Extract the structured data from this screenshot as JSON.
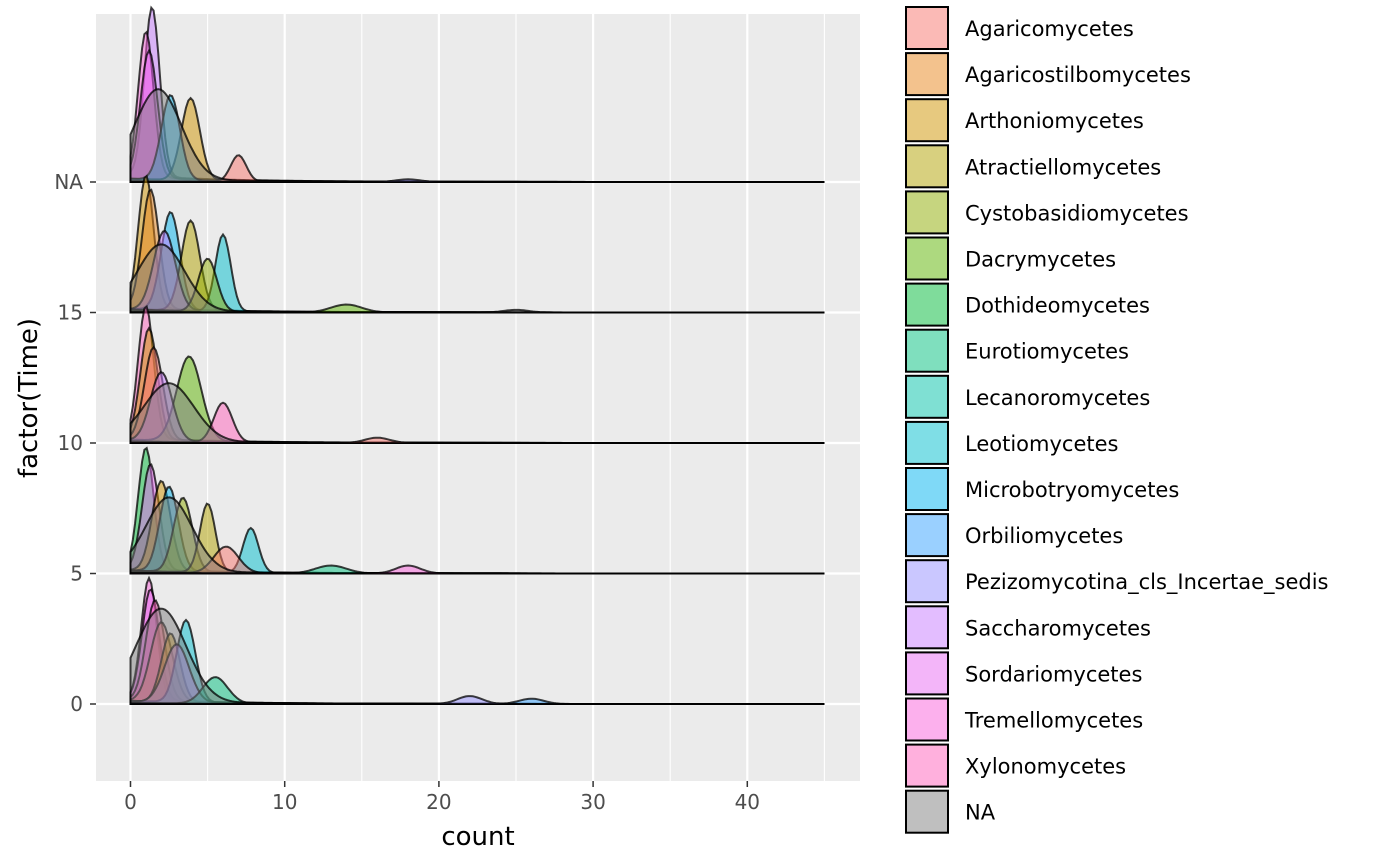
{
  "chart_data": {
    "type": "ridgeline",
    "title": "",
    "xlabel": "count",
    "ylabel": "factor(Time)",
    "xlim": [
      -2.25,
      47.25
    ],
    "x_ticks": [
      0,
      10,
      20,
      30,
      40
    ],
    "y_ticks": [
      "0",
      "5",
      "10",
      "15",
      "NA"
    ],
    "grid": true,
    "legend_position": "right",
    "ridges": [
      {
        "name": "0",
        "baseline": 0,
        "peaks": [
          {
            "series": "Tremellomycetes",
            "mode": 1.2,
            "amp": 4.6,
            "width": 0.5
          },
          {
            "series": "Sordariomycetes",
            "mode": 1.3,
            "amp": 4.2,
            "width": 0.55
          },
          {
            "series": "Xylonomycetes",
            "mode": 1.6,
            "amp": 3.8,
            "width": 0.6
          },
          {
            "series": "Agaricomycetes",
            "mode": 2.0,
            "amp": 3.0,
            "width": 0.7
          },
          {
            "series": "Arthoniomycetes",
            "mode": 2.6,
            "amp": 2.6,
            "width": 0.6
          },
          {
            "series": "Leotiomycetes",
            "mode": 3.6,
            "amp": 3.1,
            "width": 0.6
          },
          {
            "series": "Saccharomycetes",
            "mode": 3.0,
            "amp": 2.2,
            "width": 0.8
          },
          {
            "series": "Eurotiomycetes",
            "mode": 5.5,
            "amp": 1.0,
            "width": 0.8
          },
          {
            "series": "NA",
            "mode": 2.0,
            "amp": 3.5,
            "width": 1.6
          },
          {
            "series": "Orbiliomycetes",
            "mode": 26.0,
            "amp": 0.2,
            "width": 0.8
          },
          {
            "series": "Pezizomycotina_cls_Incertae_sedis",
            "mode": 22.0,
            "amp": 0.3,
            "width": 0.8
          }
        ]
      },
      {
        "name": "5",
        "baseline": 5,
        "peaks": [
          {
            "series": "Dothideomycetes",
            "mode": 1.0,
            "amp": 4.6,
            "width": 0.5
          },
          {
            "series": "Sordariomycetes",
            "mode": 1.3,
            "amp": 4.0,
            "width": 0.55
          },
          {
            "series": "Arthoniomycetes",
            "mode": 2.0,
            "amp": 3.4,
            "width": 0.6
          },
          {
            "series": "Microbotryomycetes",
            "mode": 2.5,
            "amp": 3.2,
            "width": 0.6
          },
          {
            "series": "Cystobasidiomycetes",
            "mode": 3.4,
            "amp": 2.8,
            "width": 0.6
          },
          {
            "series": "Atractiellomycetes",
            "mode": 5.0,
            "amp": 2.6,
            "width": 0.5
          },
          {
            "series": "Leotiomycetes",
            "mode": 7.8,
            "amp": 1.7,
            "width": 0.5
          },
          {
            "series": "Agaricomycetes",
            "mode": 6.2,
            "amp": 1.0,
            "width": 0.8
          },
          {
            "series": "NA",
            "mode": 2.5,
            "amp": 2.8,
            "width": 1.5
          },
          {
            "series": "Eurotiomycetes",
            "mode": 13.0,
            "amp": 0.3,
            "width": 1.0
          },
          {
            "series": "Tremellomycetes",
            "mode": 18.0,
            "amp": 0.3,
            "width": 0.8
          }
        ]
      },
      {
        "name": "10",
        "baseline": 10,
        "peaks": [
          {
            "series": "Xylonomycetes",
            "mode": 1.0,
            "amp": 5.0,
            "width": 0.5
          },
          {
            "series": "Arthoniomycetes",
            "mode": 1.2,
            "amp": 4.2,
            "width": 0.55
          },
          {
            "series": "Agaricomycetes",
            "mode": 1.5,
            "amp": 3.5,
            "width": 0.6
          },
          {
            "series": "Dacrymycetes",
            "mode": 3.8,
            "amp": 3.2,
            "width": 0.8
          },
          {
            "series": "Saccharomycetes",
            "mode": 2.0,
            "amp": 2.6,
            "width": 0.7
          },
          {
            "series": "Xylonomycetes",
            "mode": 6.0,
            "amp": 1.5,
            "width": 0.6
          },
          {
            "series": "NA",
            "mode": 2.5,
            "amp": 2.2,
            "width": 1.6
          },
          {
            "series": "Agaricomycetes",
            "mode": 16.0,
            "amp": 0.2,
            "width": 0.8
          }
        ]
      },
      {
        "name": "15",
        "baseline": 15,
        "peaks": [
          {
            "series": "Arthoniomycetes",
            "mode": 1.0,
            "amp": 5.0,
            "width": 0.5
          },
          {
            "series": "Agaricostilbomycetes",
            "mode": 1.3,
            "amp": 4.5,
            "width": 0.55
          },
          {
            "series": "Microbotryomycetes",
            "mode": 2.6,
            "amp": 3.7,
            "width": 0.6
          },
          {
            "series": "Atractiellomycetes",
            "mode": 3.9,
            "amp": 3.4,
            "width": 0.6
          },
          {
            "series": "Saccharomycetes",
            "mode": 2.2,
            "amp": 3.0,
            "width": 0.7
          },
          {
            "series": "Leotiomycetes",
            "mode": 6.0,
            "amp": 2.9,
            "width": 0.5
          },
          {
            "series": "Cystobasidiomycetes",
            "mode": 5.0,
            "amp": 2.0,
            "width": 0.6
          },
          {
            "series": "NA",
            "mode": 2.0,
            "amp": 2.5,
            "width": 1.5
          },
          {
            "series": "Dacrymycetes",
            "mode": 14.0,
            "amp": 0.3,
            "width": 1.0
          },
          {
            "series": "NA",
            "mode": 25.0,
            "amp": 0.1,
            "width": 0.8
          }
        ]
      },
      {
        "name": "NA",
        "baseline": 20,
        "peaks": [
          {
            "series": "Saccharomycetes",
            "mode": 1.4,
            "amp": 6.4,
            "width": 0.5
          },
          {
            "series": "Tremellomycetes",
            "mode": 1.0,
            "amp": 5.5,
            "width": 0.5
          },
          {
            "series": "Sordariomycetes",
            "mode": 1.2,
            "amp": 4.8,
            "width": 0.55
          },
          {
            "series": "Arthoniomycetes",
            "mode": 3.9,
            "amp": 3.1,
            "width": 0.6
          },
          {
            "series": "Microbotryomycetes",
            "mode": 2.6,
            "amp": 3.2,
            "width": 0.6
          },
          {
            "series": "Agaricomycetes",
            "mode": 7.0,
            "amp": 1.0,
            "width": 0.5
          },
          {
            "series": "NA",
            "mode": 1.8,
            "amp": 3.4,
            "width": 1.5
          },
          {
            "series": "Pezizomycotina_cls_Incertae_sedis",
            "mode": 18.0,
            "amp": 0.1,
            "width": 0.8
          }
        ]
      }
    ],
    "legend": [
      {
        "name": "Agaricomycetes",
        "color": "#F8766D"
      },
      {
        "name": "Agaricostilbomycetes",
        "color": "#E7861B"
      },
      {
        "name": "Arthoniomycetes",
        "color": "#D09400"
      },
      {
        "name": "Atractiellomycetes",
        "color": "#B2A100"
      },
      {
        "name": "Cystobasidiomycetes",
        "color": "#8EAB00"
      },
      {
        "name": "Dacrymycetes",
        "color": "#5BB300"
      },
      {
        "name": "Dothideomycetes",
        "color": "#00BA38"
      },
      {
        "name": "Eurotiomycetes",
        "color": "#00BF7D"
      },
      {
        "name": "Lecanoromycetes",
        "color": "#00C1A7"
      },
      {
        "name": "Leotiomycetes",
        "color": "#00BECD"
      },
      {
        "name": "Microbotryomycetes",
        "color": "#00B4F0"
      },
      {
        "name": "Orbiliomycetes",
        "color": "#35A2FF"
      },
      {
        "name": "Pezizomycotina_cls_Incertae_sedis",
        "color": "#9590FF"
      },
      {
        "name": "Saccharomycetes",
        "color": "#C77CFF"
      },
      {
        "name": "Sordariomycetes",
        "color": "#E76BF3"
      },
      {
        "name": "Tremellomycetes",
        "color": "#FA62DB"
      },
      {
        "name": "Xylonomycetes",
        "color": "#FF62BC"
      },
      {
        "name": "NA",
        "color": "#7F7F7F"
      }
    ]
  }
}
